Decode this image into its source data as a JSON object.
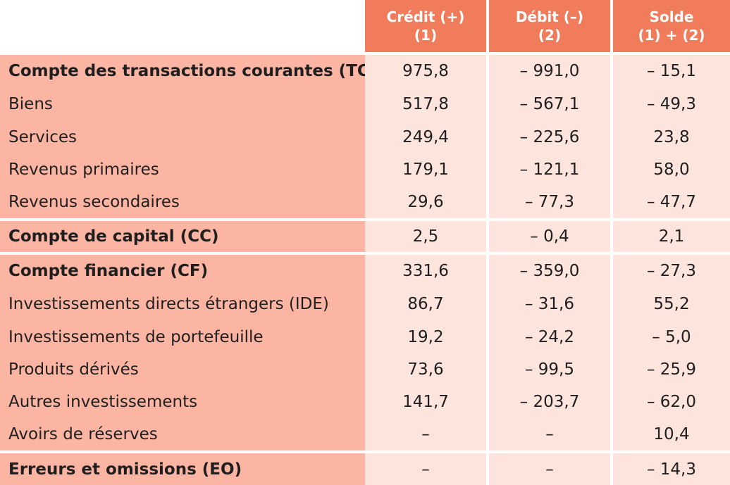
{
  "header": {
    "col1": {
      "line1": "Crédit (+)",
      "line2": "(1)"
    },
    "col2": {
      "line1": "Débit (–)",
      "line2": "(2)"
    },
    "col3": {
      "line1": "Solde",
      "line2": "(1) + (2)"
    }
  },
  "rows": [
    {
      "label": "Compte des transactions courantes (TC)",
      "credit": "975,8",
      "debit": "– 991,0",
      "solde": "– 15,1"
    },
    {
      "label": "Biens",
      "credit": "517,8",
      "debit": "– 567,1",
      "solde": "– 49,3"
    },
    {
      "label": "Services",
      "credit": "249,4",
      "debit": "– 225,6",
      "solde": "23,8"
    },
    {
      "label": "Revenus primaires",
      "credit": "179,1",
      "debit": "– 121,1",
      "solde": "58,0"
    },
    {
      "label": "Revenus secondaires",
      "credit": "29,6",
      "debit": "– 77,3",
      "solde": "– 47,7"
    },
    {
      "label": "Compte de capital (CC)",
      "credit": "2,5",
      "debit": "– 0,4",
      "solde": "2,1"
    },
    {
      "label": "Compte financier (CF)",
      "credit": "331,6",
      "debit": "– 359,0",
      "solde": "– 27,3"
    },
    {
      "label": "Investissements directs étrangers (IDE)",
      "credit": "86,7",
      "debit": "– 31,6",
      "solde": "55,2"
    },
    {
      "label": "Investissements de portefeuille",
      "credit": "19,2",
      "debit": "– 24,2",
      "solde": "– 5,0"
    },
    {
      "label": "Produits dérivés",
      "credit": "73,6",
      "debit": "– 99,5",
      "solde": "– 25,9"
    },
    {
      "label": "Autres investissements",
      "credit": "141,7",
      "debit": "– 203,7",
      "solde": "– 62,0"
    },
    {
      "label": "Avoirs de réserves",
      "credit": "–",
      "debit": "–",
      "solde": "10,4"
    },
    {
      "label": "Erreurs et omissions (EO)",
      "credit": "–",
      "debit": "–",
      "solde": "– 14,3"
    }
  ]
}
